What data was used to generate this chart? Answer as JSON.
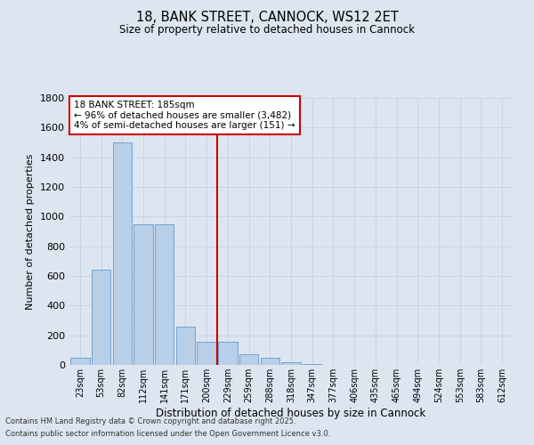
{
  "title1": "18, BANK STREET, CANNOCK, WS12 2ET",
  "title2": "Size of property relative to detached houses in Cannock",
  "xlabel": "Distribution of detached houses by size in Cannock",
  "ylabel": "Number of detached properties",
  "categories": [
    "23sqm",
    "53sqm",
    "82sqm",
    "112sqm",
    "141sqm",
    "171sqm",
    "200sqm",
    "229sqm",
    "259sqm",
    "288sqm",
    "318sqm",
    "347sqm",
    "377sqm",
    "406sqm",
    "435sqm",
    "465sqm",
    "494sqm",
    "524sqm",
    "553sqm",
    "583sqm",
    "612sqm"
  ],
  "values": [
    50,
    640,
    1500,
    950,
    950,
    260,
    155,
    155,
    70,
    50,
    20,
    5,
    2,
    2,
    2,
    2,
    2,
    2,
    2,
    2,
    2
  ],
  "bar_color": "#b8cfe8",
  "bar_edge_color": "#6699cc",
  "grid_color": "#c8d4e4",
  "background_color": "#dde6f0",
  "vline_color": "#cc0000",
  "vline_pos": 6.5,
  "annotation_text": "18 BANK STREET: 185sqm\n← 96% of detached houses are smaller (3,482)\n4% of semi-detached houses are larger (151) →",
  "annotation_box_color": "white",
  "annotation_box_edge": "#cc0000",
  "footer1": "Contains HM Land Registry data © Crown copyright and database right 2025.",
  "footer2": "Contains public sector information licensed under the Open Government Licence v3.0.",
  "ylim": [
    0,
    1800
  ],
  "yticks": [
    0,
    200,
    400,
    600,
    800,
    1000,
    1200,
    1400,
    1600,
    1800
  ]
}
